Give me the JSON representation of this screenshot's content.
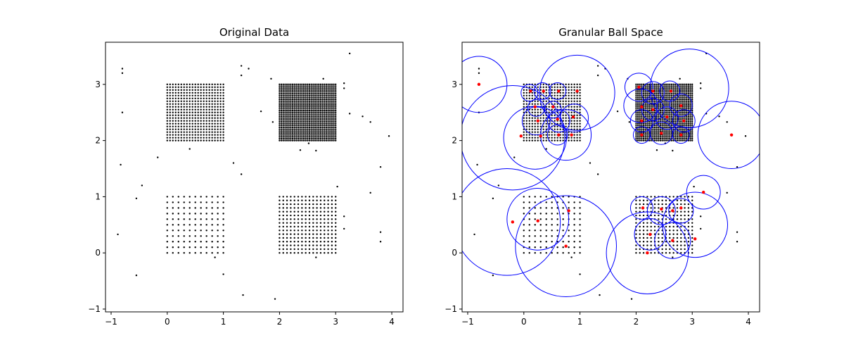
{
  "figure": {
    "background": "#ffffff",
    "point_color": "#000000",
    "center_color": "#ff0000",
    "ball_color": "#0000ff"
  },
  "chart_data": [
    {
      "type": "scatter",
      "title": "Original Data",
      "xlabel": "",
      "ylabel": "",
      "xlim": [
        -1.1,
        4.2
      ],
      "ylim": [
        -1.05,
        3.75
      ],
      "xticks": [
        -1,
        0,
        1,
        2,
        3,
        4
      ],
      "yticks": [
        -1,
        0,
        1,
        2,
        3
      ],
      "grid": false,
      "legend": "none",
      "clusters": [
        {
          "x_range": [
            0,
            1
          ],
          "y_range": [
            2,
            3
          ],
          "nx": 21,
          "ny": 21
        },
        {
          "x_range": [
            2,
            3
          ],
          "y_range": [
            2,
            3
          ],
          "nx": 31,
          "ny": 31
        },
        {
          "x_range": [
            0,
            1
          ],
          "y_range": [
            0,
            1
          ],
          "nx": 11,
          "ny": 11
        },
        {
          "x_range": [
            2,
            3
          ],
          "y_range": [
            0,
            1
          ],
          "nx": 16,
          "ny": 16
        }
      ],
      "noise_points": [
        [
          -0.8,
          3.28
        ],
        [
          -0.8,
          3.2
        ],
        [
          -0.8,
          2.5
        ],
        [
          -0.83,
          1.57
        ],
        [
          -0.88,
          0.33
        ],
        [
          -0.55,
          0.97
        ],
        [
          -0.45,
          1.2
        ],
        [
          -0.55,
          -0.4
        ],
        [
          -0.17,
          1.7
        ],
        [
          0.4,
          1.85
        ],
        [
          0.85,
          -0.08
        ],
        [
          1.0,
          -0.38
        ],
        [
          1.18,
          1.6
        ],
        [
          1.32,
          1.4
        ],
        [
          1.32,
          3.33
        ],
        [
          1.32,
          3.16
        ],
        [
          1.45,
          3.28
        ],
        [
          1.35,
          -0.75
        ],
        [
          1.67,
          2.52
        ],
        [
          1.85,
          3.1
        ],
        [
          1.88,
          2.33
        ],
        [
          1.92,
          -0.82
        ],
        [
          2.37,
          1.83
        ],
        [
          2.52,
          1.95
        ],
        [
          2.65,
          1.82
        ],
        [
          2.65,
          -0.08
        ],
        [
          2.78,
          3.1
        ],
        [
          3.03,
          1.18
        ],
        [
          3.15,
          3.02
        ],
        [
          3.15,
          2.93
        ],
        [
          3.15,
          0.65
        ],
        [
          3.15,
          0.43
        ],
        [
          3.25,
          3.55
        ],
        [
          3.25,
          2.48
        ],
        [
          3.48,
          2.43
        ],
        [
          3.62,
          2.33
        ],
        [
          3.62,
          1.07
        ],
        [
          3.8,
          1.53
        ],
        [
          3.8,
          0.37
        ],
        [
          3.8,
          0.2
        ],
        [
          3.95,
          2.08
        ]
      ]
    },
    {
      "type": "scatter",
      "title": "Granular Ball Space",
      "xlabel": "",
      "ylabel": "",
      "xlim": [
        -1.1,
        4.2
      ],
      "ylim": [
        -1.05,
        3.75
      ],
      "xticks": [
        -1,
        0,
        1,
        2,
        3,
        4
      ],
      "yticks": [
        -1,
        0,
        1,
        2,
        3
      ],
      "grid": false,
      "legend": "none",
      "balls": [
        {
          "center": [
            -0.8,
            3.0
          ],
          "radius": 0.5
        },
        {
          "center": [
            0.1,
            2.85
          ],
          "radius": 0.15
        },
        {
          "center": [
            0.33,
            2.88
          ],
          "radius": 0.15
        },
        {
          "center": [
            0.6,
            2.88
          ],
          "radius": 0.15
        },
        {
          "center": [
            0.22,
            2.58
          ],
          "radius": 0.15
        },
        {
          "center": [
            0.22,
            2.35
          ],
          "radius": 0.25
        },
        {
          "center": [
            0.52,
            2.55
          ],
          "radius": 0.15
        },
        {
          "center": [
            0.62,
            2.35
          ],
          "radius": 0.2
        },
        {
          "center": [
            0.9,
            2.4
          ],
          "radius": 0.25
        },
        {
          "center": [
            0.6,
            2.1
          ],
          "radius": 0.18
        },
        {
          "center": [
            0.95,
            2.85
          ],
          "radius": 0.67
        },
        {
          "center": [
            -0.2,
            2.05
          ],
          "radius": 0.93
        },
        {
          "center": [
            0.2,
            2.05
          ],
          "radius": 0.56
        },
        {
          "center": [
            0.75,
            2.1
          ],
          "radius": 0.45
        },
        {
          "center": [
            2.05,
            2.95
          ],
          "radius": 0.25
        },
        {
          "center": [
            2.08,
            2.62
          ],
          "radius": 0.3
        },
        {
          "center": [
            2.3,
            2.85
          ],
          "radius": 0.2
        },
        {
          "center": [
            2.6,
            2.88
          ],
          "radius": 0.18
        },
        {
          "center": [
            2.3,
            2.55
          ],
          "radius": 0.2
        },
        {
          "center": [
            2.55,
            2.4
          ],
          "radius": 0.2
        },
        {
          "center": [
            2.1,
            2.35
          ],
          "radius": 0.2
        },
        {
          "center": [
            2.8,
            2.63
          ],
          "radius": 0.2
        },
        {
          "center": [
            2.85,
            2.35
          ],
          "radius": 0.2
        },
        {
          "center": [
            2.45,
            2.13
          ],
          "radius": 0.2
        },
        {
          "center": [
            2.1,
            2.1
          ],
          "radius": 0.15
        },
        {
          "center": [
            2.8,
            2.1
          ],
          "radius": 0.15
        },
        {
          "center": [
            2.95,
            2.93
          ],
          "radius": 0.7
        },
        {
          "center": [
            3.7,
            2.1
          ],
          "radius": 0.6
        },
        {
          "center": [
            -0.3,
            0.55
          ],
          "radius": 0.95
        },
        {
          "center": [
            0.25,
            0.6
          ],
          "radius": 0.55
        },
        {
          "center": [
            0.75,
            0.12
          ],
          "radius": 0.9
        },
        {
          "center": [
            2.2,
            0.0
          ],
          "radius": 0.73
        },
        {
          "center": [
            2.1,
            0.8
          ],
          "radius": 0.2
        },
        {
          "center": [
            2.45,
            0.75
          ],
          "radius": 0.25
        },
        {
          "center": [
            2.25,
            0.33
          ],
          "radius": 0.28
        },
        {
          "center": [
            2.65,
            0.22
          ],
          "radius": 0.32
        },
        {
          "center": [
            2.8,
            0.75
          ],
          "radius": 0.22
        },
        {
          "center": [
            3.05,
            0.5
          ],
          "radius": 0.58
        },
        {
          "center": [
            3.2,
            1.08
          ],
          "radius": 0.3
        }
      ],
      "centers": [
        [
          -0.8,
          3.0
        ],
        [
          0.12,
          2.88
        ],
        [
          0.35,
          2.88
        ],
        [
          0.62,
          2.88
        ],
        [
          0.95,
          2.88
        ],
        [
          0.2,
          2.6
        ],
        [
          0.52,
          2.6
        ],
        [
          0.25,
          2.35
        ],
        [
          0.6,
          2.38
        ],
        [
          0.88,
          2.42
        ],
        [
          -0.05,
          2.08
        ],
        [
          0.3,
          2.08
        ],
        [
          0.62,
          2.1
        ],
        [
          0.85,
          2.1
        ],
        [
          2.05,
          2.95
        ],
        [
          2.3,
          2.88
        ],
        [
          2.62,
          2.88
        ],
        [
          2.1,
          2.6
        ],
        [
          2.3,
          2.55
        ],
        [
          2.55,
          2.42
        ],
        [
          2.8,
          2.62
        ],
        [
          2.1,
          2.35
        ],
        [
          2.85,
          2.35
        ],
        [
          2.45,
          2.13
        ],
        [
          2.1,
          2.1
        ],
        [
          2.8,
          2.1
        ],
        [
          3.7,
          2.1
        ],
        [
          -0.2,
          0.55
        ],
        [
          0.25,
          0.57
        ],
        [
          0.8,
          0.75
        ],
        [
          0.75,
          0.12
        ],
        [
          2.12,
          0.8
        ],
        [
          2.45,
          0.78
        ],
        [
          2.65,
          0.75
        ],
        [
          2.8,
          0.8
        ],
        [
          2.25,
          0.33
        ],
        [
          2.2,
          0.0
        ],
        [
          2.65,
          0.22
        ],
        [
          3.05,
          0.25
        ],
        [
          3.2,
          1.08
        ]
      ]
    }
  ]
}
